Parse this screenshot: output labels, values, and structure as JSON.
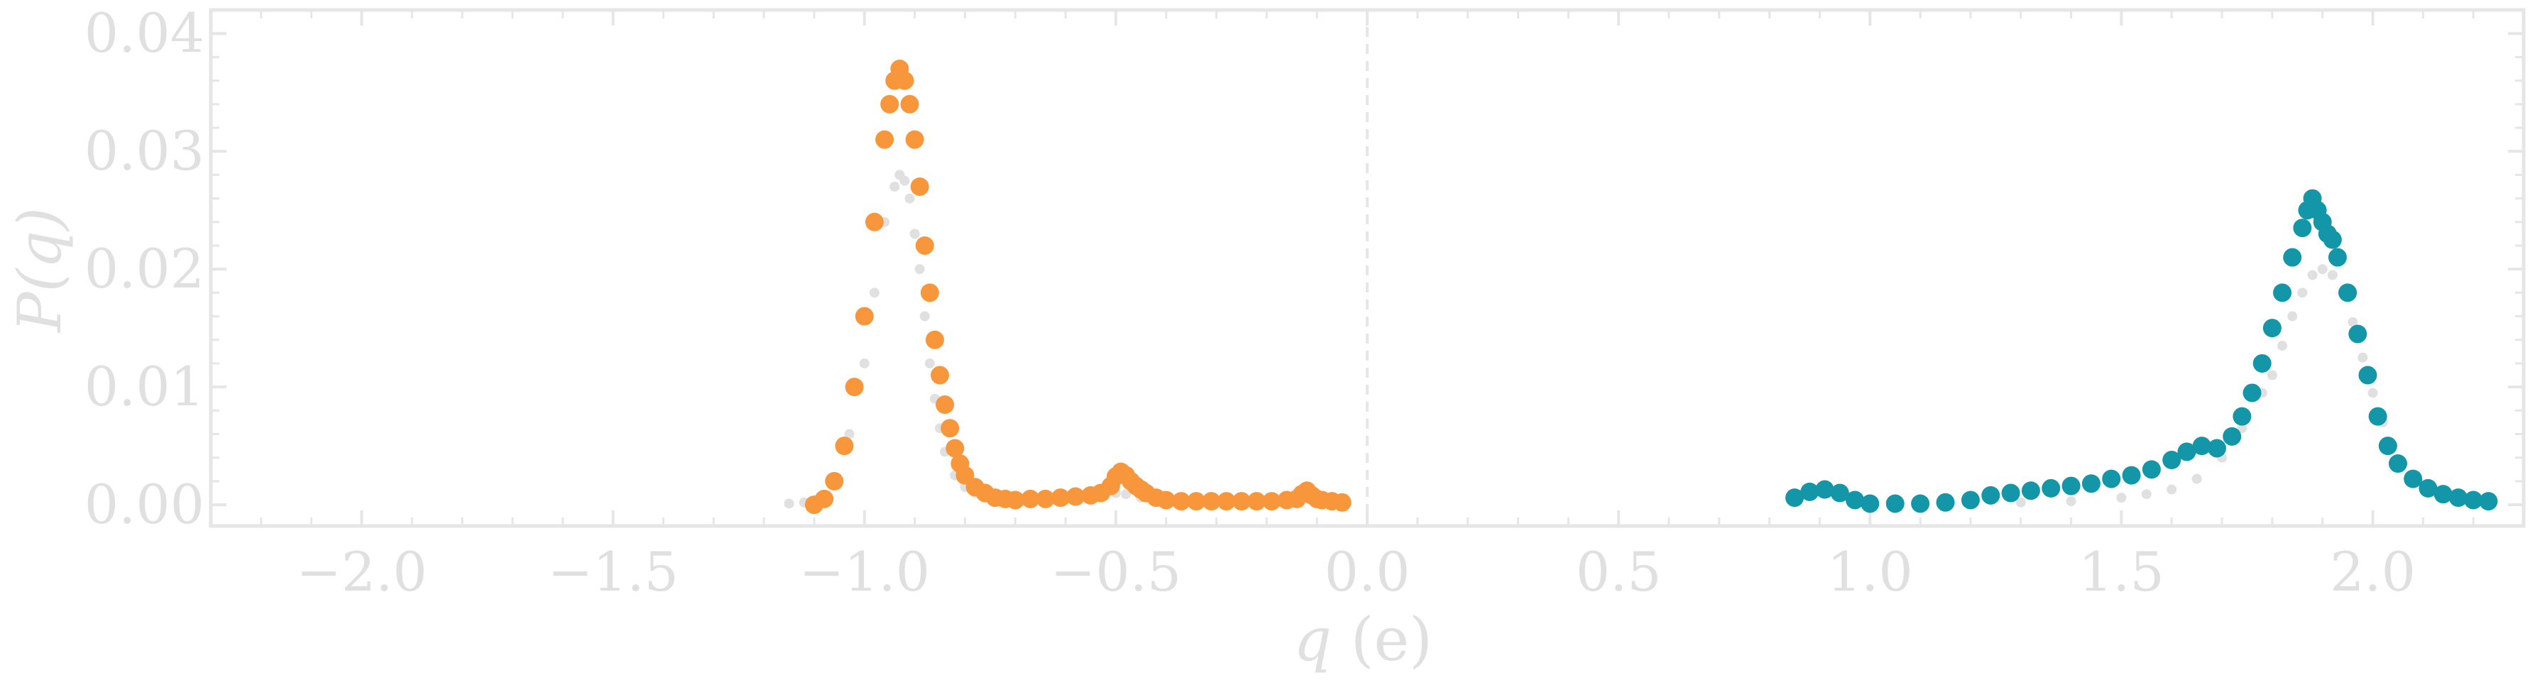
{
  "chart_data": {
    "type": "scatter",
    "xlabel": "q (e)",
    "ylabel": "P(q)",
    "xlim": [
      -2.3,
      2.3
    ],
    "ylim": [
      -0.0018,
      0.042
    ],
    "x_ticks": [
      -2.0,
      -1.5,
      -1.0,
      -0.5,
      0.0,
      0.5,
      1.0,
      1.5,
      2.0
    ],
    "x_tick_labels": [
      "−2.0",
      "−1.5",
      "−1.0",
      "−0.5",
      "0.0",
      "0.5",
      "1.0",
      "1.5",
      "2.0"
    ],
    "y_ticks": [
      0.0,
      0.01,
      0.02,
      0.03,
      0.04
    ],
    "y_tick_labels": [
      "0.00",
      "0.01",
      "0.02",
      "0.03",
      "0.04"
    ],
    "vline_x": 0.0,
    "grid": false,
    "colors": {
      "orange": "#f7963a",
      "teal": "#1296a8",
      "reference": "#e0e0e0",
      "axes": "#e6e6e6"
    },
    "series": [
      {
        "color": "#f7963a",
        "x": [
          -1.1,
          -1.08,
          -1.06,
          -1.04,
          -1.02,
          -1.0,
          -0.98,
          -0.96,
          -0.95,
          -0.94,
          -0.93,
          -0.92,
          -0.91,
          -0.9,
          -0.89,
          -0.88,
          -0.87,
          -0.86,
          -0.85,
          -0.84,
          -0.83,
          -0.82,
          -0.81,
          -0.8,
          -0.78,
          -0.76,
          -0.74,
          -0.72,
          -0.7,
          -0.67,
          -0.64,
          -0.61,
          -0.58,
          -0.55,
          -0.53,
          -0.51,
          -0.5,
          -0.49,
          -0.48,
          -0.47,
          -0.46,
          -0.45,
          -0.44,
          -0.42,
          -0.4,
          -0.37,
          -0.34,
          -0.31,
          -0.28,
          -0.25,
          -0.22,
          -0.19,
          -0.16,
          -0.14,
          -0.13,
          -0.12,
          -0.11,
          -0.1,
          -0.09,
          -0.07,
          -0.05
        ],
        "values": [
          0.0,
          0.0005,
          0.002,
          0.005,
          0.01,
          0.016,
          0.024,
          0.031,
          0.034,
          0.036,
          0.037,
          0.036,
          0.034,
          0.031,
          0.027,
          0.022,
          0.018,
          0.014,
          0.011,
          0.0085,
          0.0065,
          0.0048,
          0.0035,
          0.0025,
          0.0015,
          0.001,
          0.0006,
          0.0005,
          0.0004,
          0.0005,
          0.0005,
          0.0006,
          0.0007,
          0.0008,
          0.001,
          0.0016,
          0.0024,
          0.0028,
          0.0025,
          0.002,
          0.0016,
          0.0013,
          0.001,
          0.0006,
          0.0004,
          0.0003,
          0.0003,
          0.0003,
          0.0003,
          0.0003,
          0.0003,
          0.0003,
          0.0004,
          0.0005,
          0.0009,
          0.0012,
          0.0008,
          0.0005,
          0.0004,
          0.0003,
          0.0002
        ]
      },
      {
        "color": "#1296a8",
        "x": [
          0.85,
          0.88,
          0.91,
          0.94,
          0.97,
          1.0,
          1.05,
          1.1,
          1.15,
          1.2,
          1.24,
          1.28,
          1.32,
          1.36,
          1.4,
          1.44,
          1.48,
          1.52,
          1.56,
          1.6,
          1.63,
          1.66,
          1.69,
          1.72,
          1.74,
          1.76,
          1.78,
          1.8,
          1.82,
          1.84,
          1.86,
          1.87,
          1.88,
          1.89,
          1.9,
          1.91,
          1.92,
          1.93,
          1.95,
          1.97,
          1.99,
          2.01,
          2.03,
          2.05,
          2.08,
          2.11,
          2.14,
          2.17,
          2.2,
          2.23
        ],
        "values": [
          0.0006,
          0.0011,
          0.0013,
          0.001,
          0.0004,
          0.0001,
          0.0001,
          0.0001,
          0.0002,
          0.0004,
          0.0008,
          0.001,
          0.0012,
          0.0014,
          0.0016,
          0.0018,
          0.0022,
          0.0025,
          0.003,
          0.0038,
          0.0045,
          0.005,
          0.0048,
          0.0058,
          0.0075,
          0.0095,
          0.012,
          0.015,
          0.018,
          0.021,
          0.0235,
          0.025,
          0.026,
          0.025,
          0.024,
          0.023,
          0.0225,
          0.021,
          0.018,
          0.0145,
          0.011,
          0.0075,
          0.005,
          0.0035,
          0.0022,
          0.0014,
          0.0009,
          0.0006,
          0.0004,
          0.0003
        ]
      },
      {
        "color": "#e0e0e0",
        "x": [
          -1.15,
          -1.12,
          -1.09,
          -1.06,
          -1.03,
          -1.0,
          -0.98,
          -0.96,
          -0.94,
          -0.93,
          -0.92,
          -0.91,
          -0.9,
          -0.89,
          -0.88,
          -0.87,
          -0.86,
          -0.85,
          -0.84,
          -0.82,
          -0.8,
          -0.78,
          -0.76,
          -0.72,
          -0.68,
          -0.64,
          -0.6,
          -0.56,
          -0.52,
          -0.5,
          -0.48,
          -0.45,
          -0.42,
          -0.38,
          -0.34
        ],
        "values": [
          0.0001,
          0.0002,
          0.0006,
          0.002,
          0.006,
          0.012,
          0.018,
          0.024,
          0.027,
          0.028,
          0.0275,
          0.026,
          0.023,
          0.02,
          0.016,
          0.012,
          0.009,
          0.0065,
          0.0045,
          0.0025,
          0.0015,
          0.001,
          0.0006,
          0.0004,
          0.0003,
          0.0003,
          0.0004,
          0.0006,
          0.0008,
          0.001,
          0.0009,
          0.0006,
          0.0004,
          0.0002,
          0.0001
        ]
      },
      {
        "color": "#e0e0e0",
        "x": [
          1.3,
          1.4,
          1.5,
          1.55,
          1.6,
          1.65,
          1.7,
          1.74,
          1.78,
          1.8,
          1.82,
          1.84,
          1.86,
          1.88,
          1.9,
          1.92,
          1.94,
          1.96,
          1.98,
          2.0,
          2.02,
          2.04,
          2.06,
          2.09,
          2.12,
          2.16,
          2.2
        ],
        "values": [
          0.0002,
          0.0003,
          0.0006,
          0.0009,
          0.0013,
          0.0022,
          0.004,
          0.0065,
          0.0095,
          0.011,
          0.0135,
          0.016,
          0.018,
          0.0195,
          0.02,
          0.0195,
          0.018,
          0.0155,
          0.0125,
          0.0095,
          0.007,
          0.005,
          0.0035,
          0.002,
          0.0012,
          0.0006,
          0.0003
        ]
      }
    ]
  }
}
